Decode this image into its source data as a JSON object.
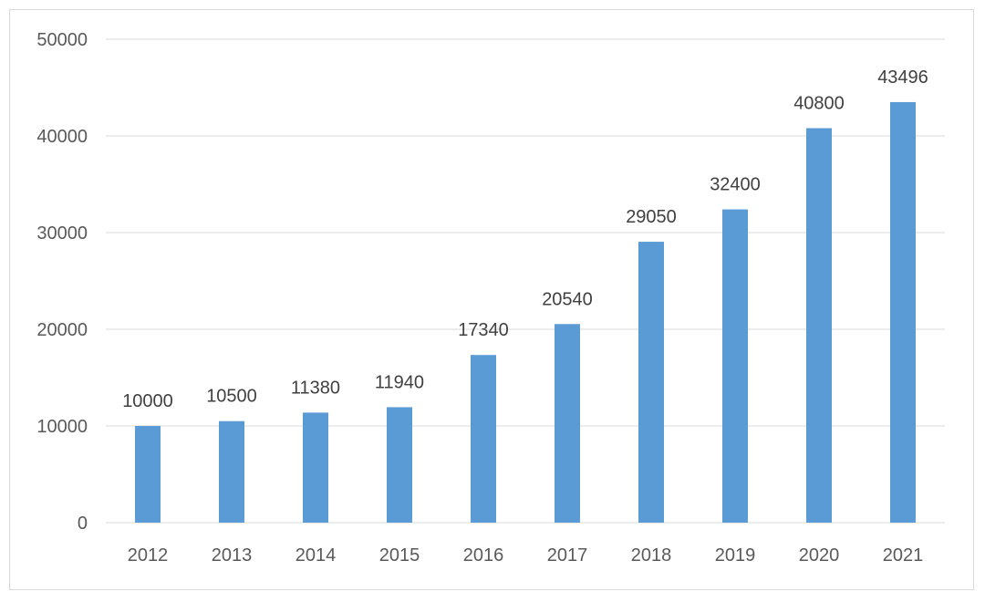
{
  "chart_data": {
    "type": "bar",
    "categories": [
      "2012",
      "2013",
      "2014",
      "2015",
      "2016",
      "2017",
      "2018",
      "2019",
      "2020",
      "2021"
    ],
    "values": [
      10000,
      10500,
      11380,
      11940,
      17340,
      20540,
      29050,
      32400,
      40800,
      43496
    ],
    "title": "",
    "xlabel": "",
    "ylabel": "",
    "ylim": [
      0,
      50000
    ],
    "yticks": [
      0,
      10000,
      20000,
      30000,
      40000,
      50000
    ],
    "grid": true,
    "legend": "none",
    "data_labels": true,
    "bar_color": "#5b9bd5",
    "gridline_color": "#d9d9d9"
  }
}
